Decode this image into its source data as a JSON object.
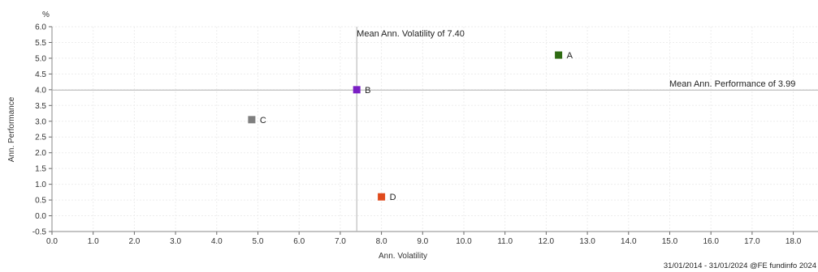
{
  "chart_data": {
    "type": "scatter",
    "xlabel": "Ann. Volatility",
    "ylabel": "Ann. Performance",
    "y_unit": "%",
    "xlim": [
      0,
      18.6
    ],
    "ylim": [
      -0.5,
      6.0
    ],
    "x_ticks": [
      "0.0",
      "1.0",
      "2.0",
      "3.0",
      "4.0",
      "5.0",
      "6.0",
      "7.0",
      "8.0",
      "9.0",
      "10.0",
      "11.0",
      "12.0",
      "13.0",
      "14.0",
      "15.0",
      "16.0",
      "17.0",
      "18.0"
    ],
    "y_ticks": [
      "-0.5",
      "0.0",
      "0.5",
      "1.0",
      "1.5",
      "2.0",
      "2.5",
      "3.0",
      "3.5",
      "4.0",
      "4.5",
      "5.0",
      "5.5",
      "6.0"
    ],
    "grid": true,
    "points": [
      {
        "label": "A",
        "x": 12.3,
        "y": 5.1,
        "color": "#2e6b12"
      },
      {
        "label": "B",
        "x": 7.4,
        "y": 4.0,
        "color": "#7a1fc4"
      },
      {
        "label": "C",
        "x": 4.85,
        "y": 3.05,
        "color": "#7f7f7f"
      },
      {
        "label": "D",
        "x": 8.0,
        "y": 0.6,
        "color": "#e04a1c"
      }
    ],
    "mean_volatility": {
      "value": 7.4,
      "label": "Mean Ann. Volatility of 7.40"
    },
    "mean_performance": {
      "value": 3.99,
      "label": "Mean Ann. Performance of 3.99"
    },
    "footer": "31/01/2014 - 31/01/2024 @FE fundinfo 2024"
  }
}
